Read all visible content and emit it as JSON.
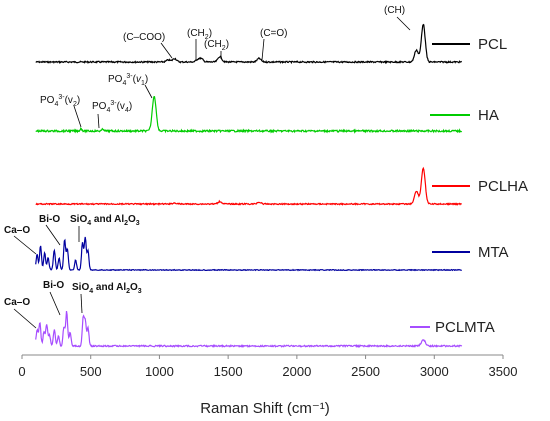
{
  "chart_data": {
    "type": "line",
    "xlabel": "Raman Shift (cm⁻¹)",
    "xlim": [
      0,
      3500
    ],
    "x_ticks": [
      "0",
      "500",
      "1000",
      "1500",
      "2000",
      "2500",
      "3000",
      "3500"
    ],
    "y_axis_shown": false,
    "grid": false,
    "legend": "inline-right",
    "x_range": [
      100,
      3200
    ],
    "series": [
      {
        "name": "PCL",
        "color": "#000000",
        "peaks": [
          [
            1065,
            0.2
          ],
          [
            1110,
            0.35
          ],
          [
            1280,
            0.25
          ],
          [
            1305,
            0.3
          ],
          [
            1440,
            0.55
          ],
          [
            1725,
            0.35
          ],
          [
            2870,
            1.2
          ],
          [
            2920,
            3.8
          ]
        ]
      },
      {
        "name": "HA",
        "color": "#00cc00",
        "peaks": [
          [
            430,
            0.25
          ],
          [
            590,
            0.2
          ],
          [
            962,
            3.5
          ]
        ]
      },
      {
        "name": "PCLHA",
        "color": "#ff0000",
        "peaks": [
          [
            1110,
            0.1
          ],
          [
            1440,
            0.25
          ],
          [
            1725,
            0.18
          ],
          [
            2870,
            1.3
          ],
          [
            2920,
            3.6
          ]
        ]
      },
      {
        "name": "MTA",
        "color": "#00009f",
        "peaks": [
          [
            110,
            1.6
          ],
          [
            135,
            2.4
          ],
          [
            165,
            1.7
          ],
          [
            190,
            1.2
          ],
          [
            235,
            2.0
          ],
          [
            270,
            1.2
          ],
          [
            310,
            3.0
          ],
          [
            330,
            2.1
          ],
          [
            390,
            1.0
          ],
          [
            440,
            2.7
          ],
          [
            460,
            3.2
          ],
          [
            480,
            1.9
          ]
        ]
      },
      {
        "name": "PCLMTA",
        "color": "#a64dff",
        "peaks": [
          [
            110,
            1.8
          ],
          [
            130,
            2.6
          ],
          [
            160,
            1.6
          ],
          [
            180,
            2.4
          ],
          [
            200,
            1.2
          ],
          [
            235,
            1.8
          ],
          [
            265,
            1.1
          ],
          [
            305,
            2.1
          ],
          [
            325,
            3.8
          ],
          [
            350,
            1.5
          ],
          [
            445,
            3.0
          ],
          [
            460,
            2.7
          ],
          [
            480,
            2.0
          ],
          [
            2920,
            0.7
          ]
        ]
      }
    ],
    "annotations": {
      "pcl_coo": "(C–COO)",
      "pcl_ch2a": "(CH",
      "pcl_ch2b": "(CH",
      "pcl_co": "(C=O)",
      "pcl_ch": "(CH)",
      "ha_v1": "PO",
      "ha_v2": "PO",
      "ha_v4": "PO",
      "mta_cao": "Ca–O",
      "mta_bio": "Bi-O",
      "mta_sio": "SiO",
      "pclmta_cao": "Ca–O",
      "pclmta_bio": "Bi-O",
      "pclmta_sio": "SiO"
    }
  }
}
